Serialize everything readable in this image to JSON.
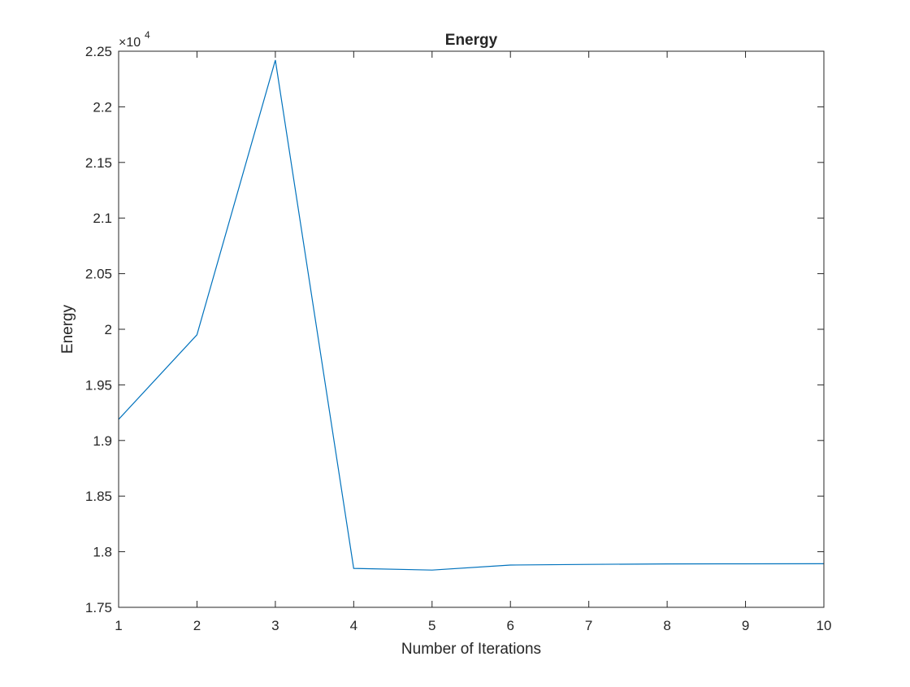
{
  "chart_data": {
    "type": "line",
    "title": "Energy",
    "xlabel": "Number of Iterations",
    "ylabel": "Energy",
    "exponent_base": "×10",
    "exponent_power": "4",
    "xlim": [
      1,
      10
    ],
    "ylim": [
      1.75,
      2.25
    ],
    "xticks": [
      1,
      2,
      3,
      4,
      5,
      6,
      7,
      8,
      9,
      10
    ],
    "yticks": [
      1.75,
      1.8,
      1.85,
      1.9,
      1.95,
      2,
      2.05,
      2.1,
      2.15,
      2.2,
      2.25
    ],
    "ytick_labels": [
      "1.75",
      "1.8",
      "1.85",
      "1.9",
      "1.95",
      "2",
      "2.05",
      "2.1",
      "2.15",
      "2.2",
      "2.25"
    ],
    "grid": false,
    "box": true,
    "series": [
      {
        "color": "#0072BD",
        "x": [
          1,
          2,
          3,
          4,
          5,
          6,
          7,
          8,
          9,
          10
        ],
        "values": [
          1.919,
          1.995,
          2.242,
          1.785,
          1.7835,
          1.788,
          1.7886,
          1.789,
          1.7891,
          1.7892
        ]
      }
    ]
  }
}
